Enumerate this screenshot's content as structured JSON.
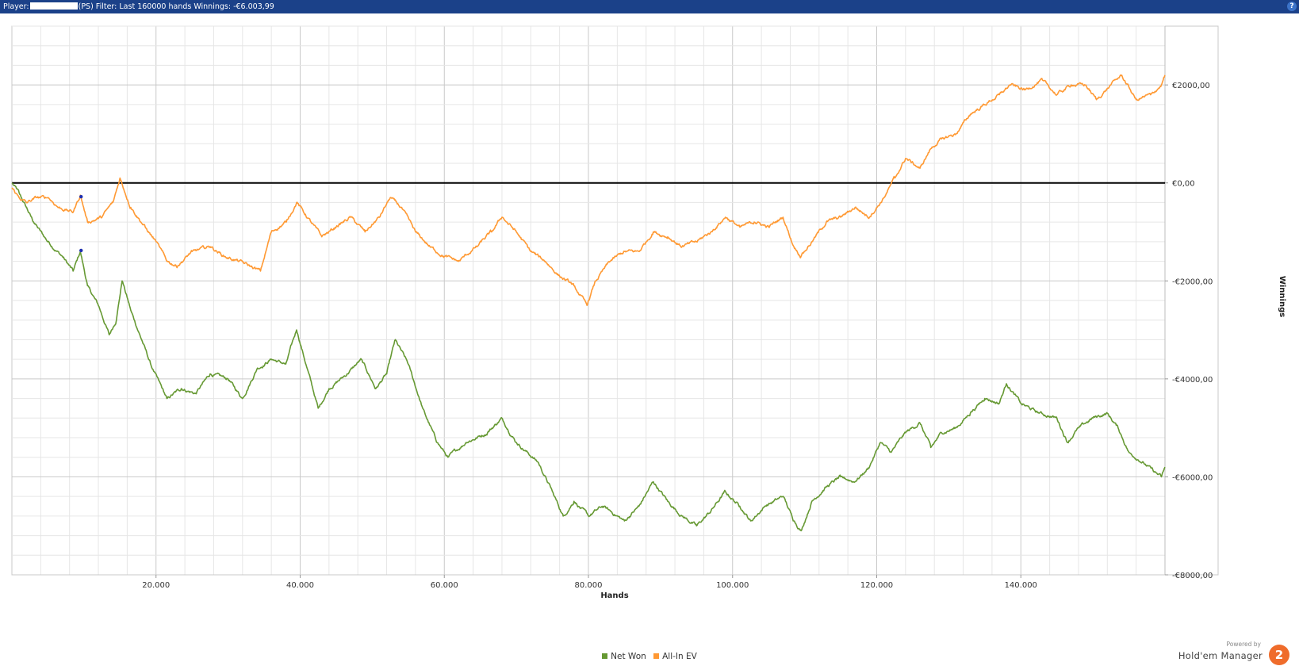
{
  "header": {
    "prefix": "Player:",
    "suffix": "(PS) Filter: Last 160000 hands Winnings: -€6.003,99",
    "help_label": "?"
  },
  "legend": {
    "items": [
      {
        "label": "Net Won",
        "color": "#669933"
      },
      {
        "label": "All-In EV",
        "color": "#ff9933"
      }
    ]
  },
  "brand": {
    "powered_by": "Powered by",
    "name": "Hold'em Manager",
    "logo_text": "2"
  },
  "chart_data": {
    "type": "line",
    "xlabel": "Hands",
    "ylabel": "Winnings",
    "xlim": [
      0,
      160000
    ],
    "ylim": [
      -8000,
      3200
    ],
    "x_ticks": [
      20000,
      40000,
      60000,
      80000,
      100000,
      120000,
      140000
    ],
    "x_tick_labels": [
      "20.000",
      "40.000",
      "60.000",
      "80.000",
      "100.000",
      "120.000",
      "140.000"
    ],
    "y_ticks": [
      2000,
      0,
      -2000,
      -4000,
      -6000,
      -8000
    ],
    "y_tick_labels": [
      "€2000,00",
      "€0,00",
      "-€2000,00",
      "-€4000,00",
      "-€6000,00",
      "-€8000,00"
    ],
    "grid": true,
    "zero_line": true,
    "series": [
      {
        "name": "Net Won",
        "color": "#669933",
        "points": [
          [
            0,
            0
          ],
          [
            1000,
            -200
          ],
          [
            3000,
            -800
          ],
          [
            5000,
            -1200
          ],
          [
            7000,
            -1500
          ],
          [
            8500,
            -1800
          ],
          [
            9500,
            -1400
          ],
          [
            10500,
            -2100
          ],
          [
            12000,
            -2500
          ],
          [
            13500,
            -3100
          ],
          [
            14500,
            -2800
          ],
          [
            15300,
            -2000
          ],
          [
            16500,
            -2600
          ],
          [
            18000,
            -3200
          ],
          [
            19500,
            -3800
          ],
          [
            21500,
            -4400
          ],
          [
            23500,
            -4200
          ],
          [
            25500,
            -4300
          ],
          [
            27500,
            -3900
          ],
          [
            30000,
            -4000
          ],
          [
            32000,
            -4400
          ],
          [
            34000,
            -3800
          ],
          [
            36000,
            -3600
          ],
          [
            38000,
            -3700
          ],
          [
            39500,
            -3000
          ],
          [
            41000,
            -3800
          ],
          [
            42500,
            -4600
          ],
          [
            44000,
            -4200
          ],
          [
            46500,
            -3900
          ],
          [
            48500,
            -3600
          ],
          [
            50500,
            -4200
          ],
          [
            52000,
            -3900
          ],
          [
            53200,
            -3200
          ],
          [
            55000,
            -3700
          ],
          [
            57000,
            -4600
          ],
          [
            59000,
            -5300
          ],
          [
            60500,
            -5600
          ],
          [
            63000,
            -5300
          ],
          [
            66000,
            -5100
          ],
          [
            68000,
            -4800
          ],
          [
            70000,
            -5300
          ],
          [
            73000,
            -5700
          ],
          [
            75000,
            -6300
          ],
          [
            76500,
            -6800
          ],
          [
            78000,
            -6500
          ],
          [
            80000,
            -6800
          ],
          [
            82000,
            -6600
          ],
          [
            85000,
            -6900
          ],
          [
            87000,
            -6600
          ],
          [
            89000,
            -6100
          ],
          [
            91000,
            -6500
          ],
          [
            93000,
            -6800
          ],
          [
            95000,
            -7000
          ],
          [
            97000,
            -6700
          ],
          [
            99000,
            -6300
          ],
          [
            101000,
            -6600
          ],
          [
            102500,
            -6900
          ],
          [
            104500,
            -6600
          ],
          [
            107000,
            -6400
          ],
          [
            108500,
            -6900
          ],
          [
            109500,
            -7100
          ],
          [
            111000,
            -6500
          ],
          [
            113000,
            -6200
          ],
          [
            115000,
            -6000
          ],
          [
            117000,
            -6100
          ],
          [
            119000,
            -5800
          ],
          [
            120500,
            -5300
          ],
          [
            122000,
            -5500
          ],
          [
            124000,
            -5100
          ],
          [
            126000,
            -4900
          ],
          [
            127500,
            -5400
          ],
          [
            129000,
            -5100
          ],
          [
            131000,
            -5000
          ],
          [
            133000,
            -4700
          ],
          [
            135000,
            -4400
          ],
          [
            137000,
            -4500
          ],
          [
            138000,
            -4100
          ],
          [
            140000,
            -4500
          ],
          [
            142500,
            -4700
          ],
          [
            145000,
            -4800
          ],
          [
            146500,
            -5300
          ],
          [
            148000,
            -5000
          ],
          [
            150000,
            -4800
          ],
          [
            152000,
            -4700
          ],
          [
            153500,
            -5000
          ],
          [
            155000,
            -5500
          ],
          [
            157000,
            -5700
          ],
          [
            158500,
            -5900
          ],
          [
            159500,
            -6000
          ],
          [
            160000,
            -5800
          ]
        ]
      },
      {
        "name": "All-In EV",
        "color": "#ff9933",
        "points": [
          [
            0,
            -100
          ],
          [
            1000,
            -300
          ],
          [
            2000,
            -400
          ],
          [
            3500,
            -300
          ],
          [
            5000,
            -300
          ],
          [
            6500,
            -500
          ],
          [
            8500,
            -600
          ],
          [
            9500,
            -250
          ],
          [
            10500,
            -800
          ],
          [
            12500,
            -700
          ],
          [
            14000,
            -400
          ],
          [
            15000,
            100
          ],
          [
            16500,
            -500
          ],
          [
            18500,
            -900
          ],
          [
            20000,
            -1200
          ],
          [
            21500,
            -1600
          ],
          [
            23000,
            -1700
          ],
          [
            25000,
            -1400
          ],
          [
            27500,
            -1300
          ],
          [
            29500,
            -1500
          ],
          [
            31500,
            -1600
          ],
          [
            33000,
            -1700
          ],
          [
            34500,
            -1800
          ],
          [
            36000,
            -1000
          ],
          [
            38000,
            -800
          ],
          [
            39500,
            -400
          ],
          [
            41500,
            -800
          ],
          [
            43000,
            -1100
          ],
          [
            45000,
            -900
          ],
          [
            47000,
            -700
          ],
          [
            49000,
            -1000
          ],
          [
            51000,
            -700
          ],
          [
            52500,
            -300
          ],
          [
            54000,
            -500
          ],
          [
            56000,
            -1000
          ],
          [
            58000,
            -1300
          ],
          [
            60000,
            -1500
          ],
          [
            62000,
            -1600
          ],
          [
            64500,
            -1300
          ],
          [
            66500,
            -1000
          ],
          [
            68000,
            -700
          ],
          [
            70000,
            -1000
          ],
          [
            72000,
            -1400
          ],
          [
            74000,
            -1600
          ],
          [
            76000,
            -1900
          ],
          [
            78000,
            -2100
          ],
          [
            79800,
            -2500
          ],
          [
            81000,
            -2000
          ],
          [
            83000,
            -1600
          ],
          [
            85000,
            -1400
          ],
          [
            87000,
            -1400
          ],
          [
            89000,
            -1000
          ],
          [
            91000,
            -1100
          ],
          [
            93000,
            -1300
          ],
          [
            95000,
            -1200
          ],
          [
            97000,
            -1000
          ],
          [
            99000,
            -700
          ],
          [
            101000,
            -900
          ],
          [
            103000,
            -800
          ],
          [
            105000,
            -900
          ],
          [
            107000,
            -700
          ],
          [
            108500,
            -1300
          ],
          [
            109500,
            -1500
          ],
          [
            111000,
            -1200
          ],
          [
            113000,
            -800
          ],
          [
            115000,
            -700
          ],
          [
            117000,
            -500
          ],
          [
            119000,
            -700
          ],
          [
            121000,
            -300
          ],
          [
            122500,
            100
          ],
          [
            124000,
            500
          ],
          [
            126000,
            300
          ],
          [
            127500,
            700
          ],
          [
            129000,
            900
          ],
          [
            131000,
            1000
          ],
          [
            133000,
            1400
          ],
          [
            135000,
            1600
          ],
          [
            137000,
            1800
          ],
          [
            138500,
            2000
          ],
          [
            140500,
            1900
          ],
          [
            143000,
            2100
          ],
          [
            145000,
            1800
          ],
          [
            147000,
            2000
          ],
          [
            149000,
            2000
          ],
          [
            150500,
            1700
          ],
          [
            152500,
            2000
          ],
          [
            154000,
            2200
          ],
          [
            156000,
            1700
          ],
          [
            158000,
            1800
          ],
          [
            159500,
            2000
          ],
          [
            160000,
            2200
          ]
        ]
      }
    ]
  }
}
